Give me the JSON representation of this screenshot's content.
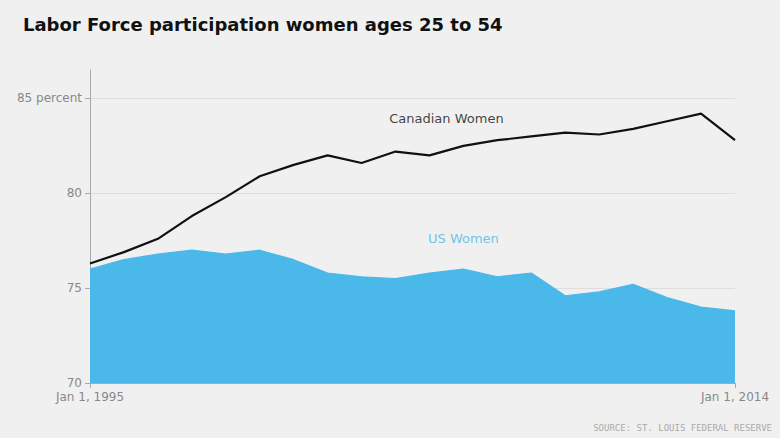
{
  "chart_data": {
    "type": "line",
    "title": "Labor Force participation women ages 25 to 54",
    "x": [
      1995,
      1996,
      1997,
      1998,
      1999,
      2000,
      2001,
      2002,
      2003,
      2004,
      2005,
      2006,
      2007,
      2008,
      2009,
      2010,
      2011,
      2012,
      2013,
      2014
    ],
    "series": [
      {
        "name": "US Women",
        "type": "area",
        "color": "#4ab8e8",
        "values": [
          76.0,
          76.5,
          76.8,
          77.0,
          76.8,
          77.0,
          76.5,
          75.8,
          75.6,
          75.5,
          75.8,
          76.0,
          75.6,
          75.8,
          74.6,
          74.8,
          75.2,
          74.5,
          74.0,
          73.8
        ]
      },
      {
        "name": "Canadian Women",
        "type": "line",
        "color": "#111111",
        "values": [
          76.3,
          76.9,
          77.6,
          78.8,
          79.8,
          80.9,
          81.5,
          82.0,
          81.6,
          82.2,
          82.0,
          82.5,
          82.8,
          83.0,
          83.2,
          83.1,
          83.4,
          83.8,
          84.2,
          82.8
        ]
      }
    ],
    "xlim": [
      1995,
      2014
    ],
    "xticks": [
      {
        "value": 1995,
        "label": "Jan 1, 1995"
      },
      {
        "value": 2014,
        "label": "Jan 1, 2014"
      }
    ],
    "ylim": [
      70,
      86.5
    ],
    "yticks": [
      70,
      75,
      80,
      {
        "value": 85,
        "label": "85 percent"
      }
    ],
    "grid": true,
    "annotations": [
      {
        "text": "Canadian Women",
        "x": 2005.5,
        "y": 83.6,
        "color": "#111111"
      },
      {
        "text": "US Women",
        "x": 2006.0,
        "y": 77.3,
        "color": "#4ab8e8"
      }
    ],
    "source": "SOURCE: ST. LOUIS FEDERAL RESERVE"
  }
}
